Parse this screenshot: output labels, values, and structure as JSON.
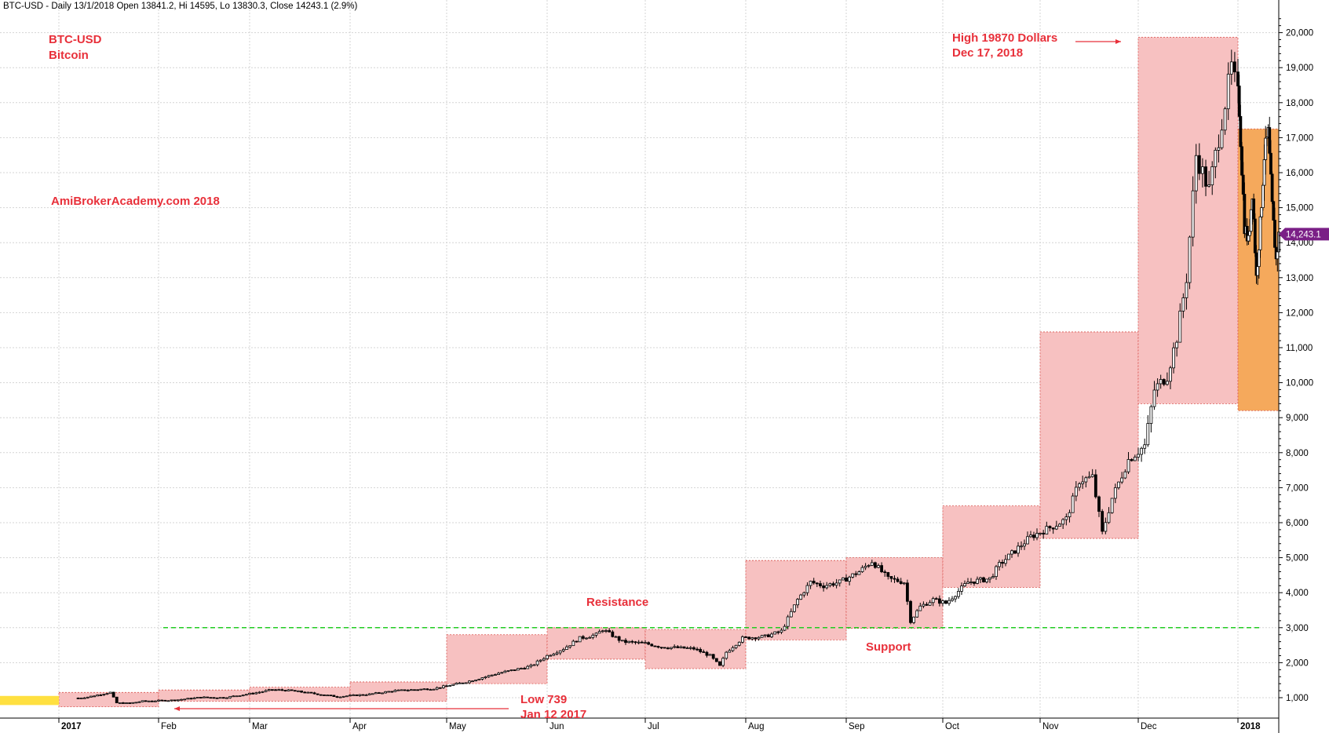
{
  "header": "BTC-USD - Daily 13/1/2018 Open 13841.2, Hi 14595, Lo 13830.3, Close 14243.1 (2.9%)",
  "chart_data": {
    "type": "candlestick",
    "symbol": "BTC-USD",
    "x_tick_labels": [
      "2017",
      "Feb",
      "Mar",
      "Apr",
      "May",
      "Jun",
      "Jul",
      "Aug",
      "Sep",
      "Oct",
      "Nov",
      "Dec",
      "2018"
    ],
    "y_tick_labels": [
      "1,000",
      "2,000",
      "3,000",
      "4,000",
      "5,000",
      "6,000",
      "7,000",
      "8,000",
      "9,000",
      "10,000",
      "11,000",
      "12,000",
      "13,000",
      "14,000",
      "15,000",
      "16,000",
      "17,000",
      "18,000",
      "19,000",
      "20,000"
    ],
    "y_ticks": [
      1000,
      2000,
      3000,
      4000,
      5000,
      6000,
      7000,
      8000,
      9000,
      10000,
      11000,
      12000,
      13000,
      14000,
      15000,
      16000,
      17000,
      18000,
      19000,
      20000
    ],
    "ylim": [
      0,
      20500
    ],
    "last_price_label": "14,243.1",
    "last_price": 14243.1,
    "grid": true,
    "resistance_support_level": 3000,
    "monthly_ranges": [
      {
        "month": "Jan 2017",
        "low": 739,
        "high": 1150,
        "color": "#f7c1c1"
      },
      {
        "month": "Feb 2017",
        "low": 900,
        "high": 1220,
        "color": "#f7c1c1"
      },
      {
        "month": "Mar 2017",
        "low": 900,
        "high": 1300,
        "color": "#f7c1c1"
      },
      {
        "month": "Apr 2017",
        "low": 900,
        "high": 1450,
        "color": "#f7c1c1"
      },
      {
        "month": "May 2017",
        "low": 1400,
        "high": 2800,
        "color": "#f7c1c1"
      },
      {
        "month": "Jun 2017",
        "low": 2100,
        "high": 3000,
        "color": "#f7c1c1"
      },
      {
        "month": "Jul 2017",
        "low": 1830,
        "high": 2950,
        "color": "#f7c1c1"
      },
      {
        "month": "Aug 2017",
        "low": 2650,
        "high": 4920,
        "color": "#f7c1c1"
      },
      {
        "month": "Sep 2017",
        "low": 2980,
        "high": 5000,
        "color": "#f7c1c1"
      },
      {
        "month": "Oct 2017",
        "low": 4150,
        "high": 6480,
        "color": "#f7c1c1"
      },
      {
        "month": "Nov 2017",
        "low": 5550,
        "high": 11450,
        "color": "#f7c1c1"
      },
      {
        "month": "Dec 2017",
        "low": 9400,
        "high": 19870,
        "color": "#f7c1c1"
      },
      {
        "month": "Jan 2018",
        "low": 9200,
        "high": 17250,
        "color": "#f5a95c"
      }
    ],
    "price_path": [
      [
        0,
        990
      ],
      [
        3,
        1020
      ],
      [
        10,
        1150
      ],
      [
        12,
        850
      ],
      [
        16,
        840
      ],
      [
        20,
        900
      ],
      [
        30,
        930
      ],
      [
        38,
        1010
      ],
      [
        45,
        1000
      ],
      [
        55,
        1140
      ],
      [
        60,
        1230
      ],
      [
        66,
        1200
      ],
      [
        70,
        1150
      ],
      [
        80,
        1030
      ],
      [
        90,
        1100
      ],
      [
        98,
        1200
      ],
      [
        110,
        1260
      ],
      [
        120,
        1450
      ],
      [
        130,
        1700
      ],
      [
        140,
        1900
      ],
      [
        145,
        2200
      ],
      [
        150,
        2400
      ],
      [
        155,
        2700
      ],
      [
        160,
        2800
      ],
      [
        162,
        2950
      ],
      [
        168,
        2600
      ],
      [
        175,
        2550
      ],
      [
        180,
        2450
      ],
      [
        190,
        2400
      ],
      [
        195,
        2200
      ],
      [
        198,
        1900
      ],
      [
        200,
        2300
      ],
      [
        205,
        2700
      ],
      [
        212,
        2750
      ],
      [
        217,
        2900
      ],
      [
        222,
        3800
      ],
      [
        226,
        4300
      ],
      [
        230,
        4200
      ],
      [
        235,
        4300
      ],
      [
        241,
        4600
      ],
      [
        245,
        4900
      ],
      [
        250,
        4400
      ],
      [
        255,
        4300
      ],
      [
        257,
        3200
      ],
      [
        260,
        3600
      ],
      [
        264,
        3800
      ],
      [
        268,
        3700
      ],
      [
        275,
        4300
      ],
      [
        282,
        4400
      ],
      [
        285,
        4800
      ],
      [
        290,
        5200
      ],
      [
        295,
        5600
      ],
      [
        302,
        5900
      ],
      [
        306,
        6100
      ],
      [
        310,
        7200
      ],
      [
        314,
        7300
      ],
      [
        317,
        5700
      ],
      [
        320,
        6700
      ],
      [
        325,
        7800
      ],
      [
        330,
        8200
      ],
      [
        333,
        9800
      ],
      [
        337,
        10200
      ],
      [
        340,
        11300
      ],
      [
        343,
        13000
      ],
      [
        346,
        16500
      ],
      [
        350,
        15500
      ],
      [
        353,
        17000
      ],
      [
        357,
        19000
      ],
      [
        360,
        17800
      ],
      [
        364,
        14500
      ],
      [
        367,
        14000
      ],
      [
        370,
        15500
      ],
      [
        373,
        13000
      ],
      [
        376,
        14500
      ],
      [
        379,
        16500
      ],
      [
        382,
        17100
      ],
      [
        385,
        15000
      ],
      [
        388,
        13500
      ],
      [
        390,
        14200
      ]
    ],
    "annotations": [
      {
        "text": "BTC-USD",
        "line2": "Bitcoin"
      },
      {
        "text": "AmiBrokerAcademy.com  2018"
      },
      {
        "text": "High 19870 Dollars",
        "line2": "Dec 17, 2018"
      },
      {
        "text": "Low 739",
        "line2": "Jan 12 2017"
      },
      {
        "text": "Resistance"
      },
      {
        "text": "Support"
      }
    ]
  }
}
